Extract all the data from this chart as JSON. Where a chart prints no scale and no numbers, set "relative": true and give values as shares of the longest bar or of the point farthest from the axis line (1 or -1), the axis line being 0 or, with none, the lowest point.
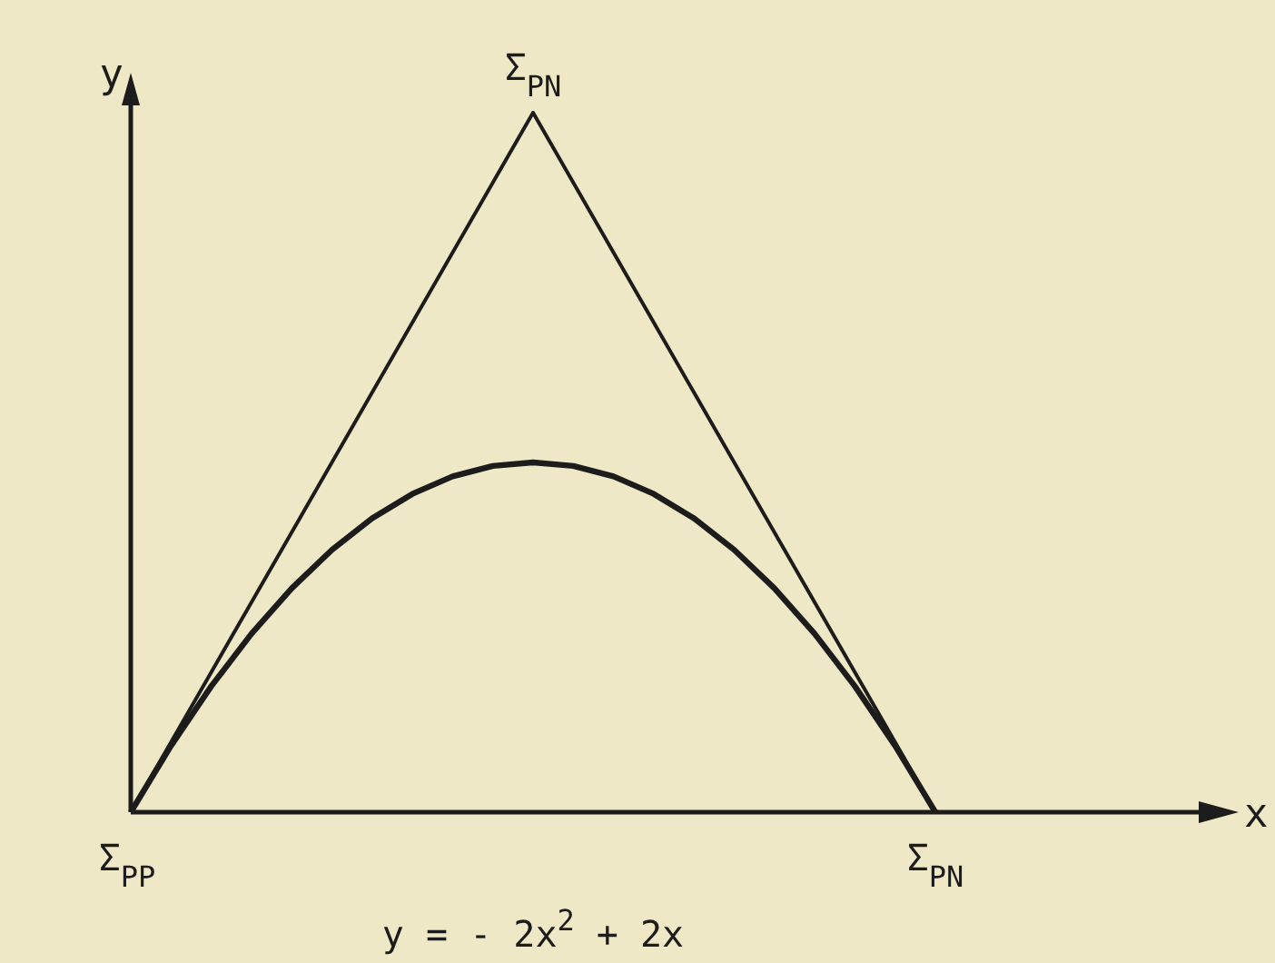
{
  "chart_data": {
    "type": "line",
    "relative": true,
    "categories": [
      null,
      null,
      null,
      null,
      null,
      null,
      null,
      null,
      null,
      null,
      null,
      null,
      null,
      null,
      null,
      null,
      null,
      null,
      null,
      null,
      null
    ],
    "series": [
      {
        "color": "#1c1c1c",
        "values": [
          0,
          0.1,
          0.2,
          0.3,
          0.4,
          0.5,
          0.6,
          0.7,
          0.8,
          0.9,
          1,
          0.9,
          0.8,
          0.7,
          0.6,
          0.5,
          0.4,
          0.3,
          0.2,
          0.1,
          0
        ]
      },
      {
        "color": "#1c1c1c",
        "values": [
          0,
          0.095,
          0.18,
          0.255,
          0.32,
          0.375,
          0.42,
          0.455,
          0.48,
          0.495,
          0.5,
          0.495,
          0.48,
          0.455,
          0.42,
          0.375,
          0.32,
          0.255,
          0.18,
          0.095,
          0
        ]
      }
    ],
    "annotations": [
      "y",
      "Σ$_{PN}$",
      "Σ$_{PP}$",
      "Σ$_{PN}$",
      "x",
      "y = - 2x$^{2}$ + 2x"
    ],
    "legend": false,
    "grid": false,
    "marker": "none",
    "line_style": "solid"
  }
}
